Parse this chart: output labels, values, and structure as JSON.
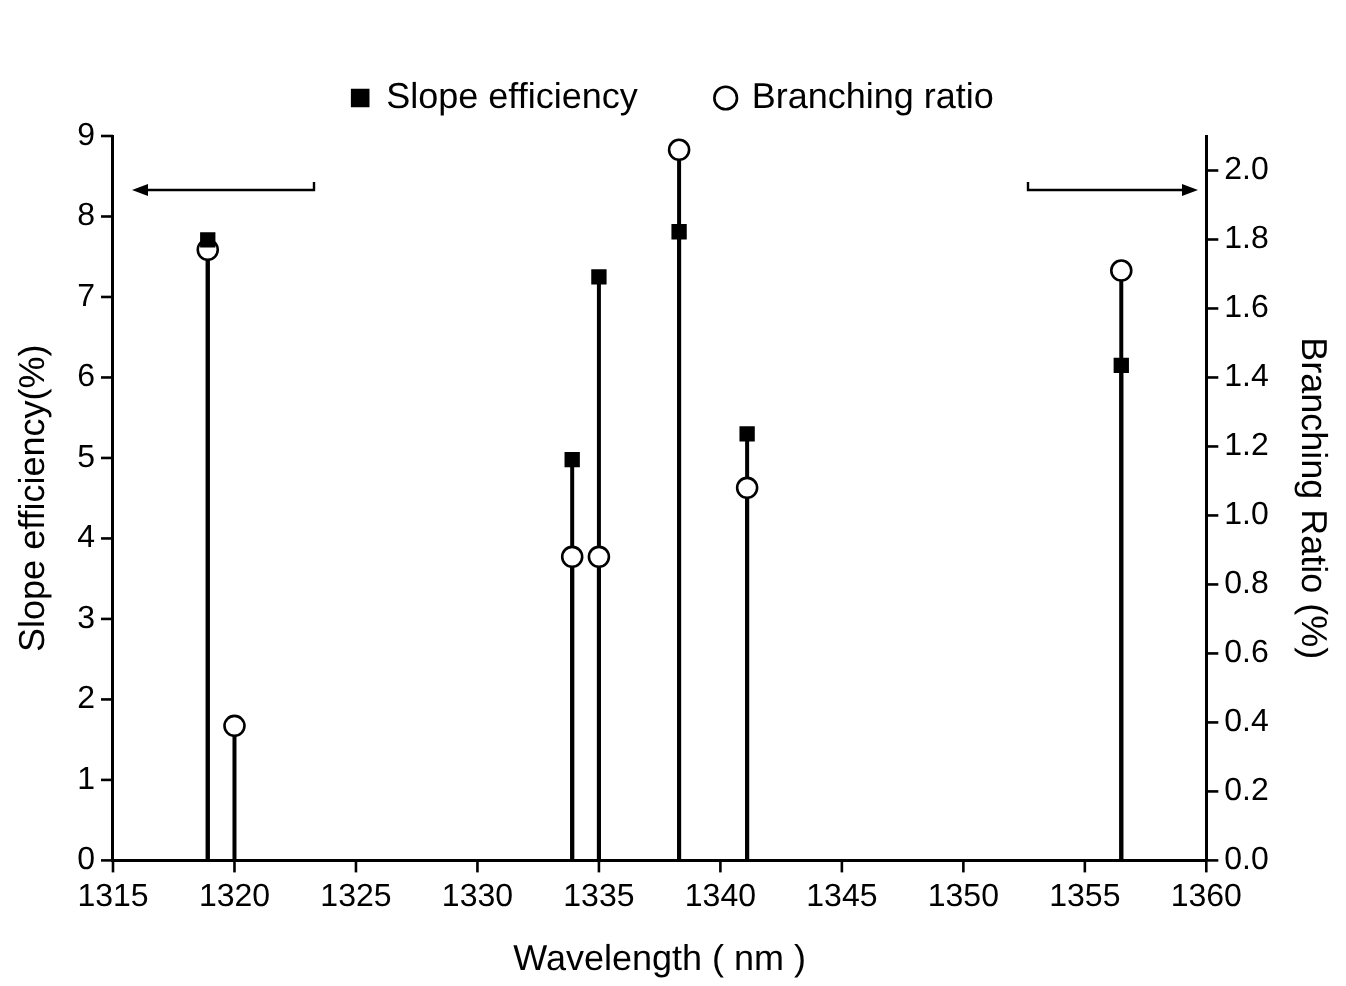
{
  "chart_data": {
    "type": "lollipop",
    "xlabel": "Wavelength ( nm )",
    "ylabel": "Slope efficiency(%)",
    "y2label": "Branching Ratio (%)",
    "series": [
      {
        "name": "Slope efficiency",
        "type": "lollipop",
        "marker": "square",
        "color": "#000000",
        "x": [
          1318.9,
          1333.9,
          1335.0,
          1338.3,
          1341.1,
          1356.5
        ],
        "values": [
          7.71,
          4.98,
          7.25,
          7.81,
          5.3,
          6.15
        ]
      },
      {
        "name": "Branching ratio",
        "type": "lollipop",
        "marker": "circle",
        "axis": "y2",
        "color": "#000000",
        "x": [
          1318.9,
          1320.0,
          1333.9,
          1335.0,
          1338.3,
          1341.1,
          1356.5
        ],
        "values": [
          1.77,
          0.39,
          0.88,
          0.88,
          2.06,
          1.08,
          1.71
        ]
      }
    ],
    "xlim": [
      1315,
      1360
    ],
    "xticks": [
      1315,
      1320,
      1325,
      1330,
      1335,
      1340,
      1345,
      1350,
      1355,
      1360
    ],
    "ylim": [
      0,
      9
    ],
    "yticks": [
      0,
      1,
      2,
      3,
      4,
      5,
      6,
      7,
      8,
      9
    ],
    "y2lim": [
      0,
      2.1
    ],
    "y2ticks": [
      {
        "value": 0,
        "label": "0.0"
      },
      0.2,
      0.4,
      0.6,
      0.8,
      {
        "value": 1,
        "label": "1.0"
      },
      1.2,
      1.4,
      1.6,
      1.8,
      {
        "value": 2,
        "label": "2.0"
      }
    ],
    "legend": "top"
  }
}
